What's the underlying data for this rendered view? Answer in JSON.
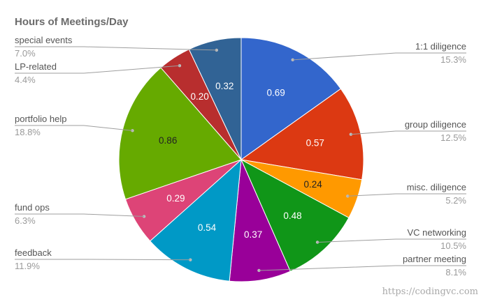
{
  "chart_data": {
    "type": "pie",
    "title": "Hours of Meetings/Day",
    "slices": [
      {
        "label": "1:1 diligence",
        "value": 0.69,
        "value_label": "0.69",
        "percent_label": "15.3%",
        "color": "#3366cc",
        "text_color": "#ffffff"
      },
      {
        "label": "group diligence",
        "value": 0.57,
        "value_label": "0.57",
        "percent_label": "12.5%",
        "color": "#dc3912",
        "text_color": "#ffffff"
      },
      {
        "label": "misc. diligence",
        "value": 0.24,
        "value_label": "0.24",
        "percent_label": "5.2%",
        "color": "#ff9900",
        "text_color": "#222222"
      },
      {
        "label": "VC networking",
        "value": 0.48,
        "value_label": "0.48",
        "percent_label": "10.5%",
        "color": "#109618",
        "text_color": "#ffffff"
      },
      {
        "label": "partner meeting",
        "value": 0.37,
        "value_label": "0.37",
        "percent_label": "8.1%",
        "color": "#990099",
        "text_color": "#ffffff"
      },
      {
        "label": "feedback",
        "value": 0.54,
        "value_label": "0.54",
        "percent_label": "11.9%",
        "color": "#0099c6",
        "text_color": "#ffffff"
      },
      {
        "label": "fund ops",
        "value": 0.29,
        "value_label": "0.29",
        "percent_label": "6.3%",
        "color": "#dd4477",
        "text_color": "#ffffff"
      },
      {
        "label": "portfolio help",
        "value": 0.86,
        "value_label": "0.86",
        "percent_label": "18.8%",
        "color": "#66aa00",
        "text_color": "#222222"
      },
      {
        "label": "LP-related",
        "value": 0.2,
        "value_label": "0.20",
        "percent_label": "4.4%",
        "color": "#b82e2e",
        "text_color": "#ffffff"
      },
      {
        "label": "special events",
        "value": 0.32,
        "value_label": "0.32",
        "percent_label": "7.0%",
        "color": "#316395",
        "text_color": "#ffffff"
      }
    ],
    "legend": "labeled"
  },
  "watermark": "https://codingvc.com"
}
